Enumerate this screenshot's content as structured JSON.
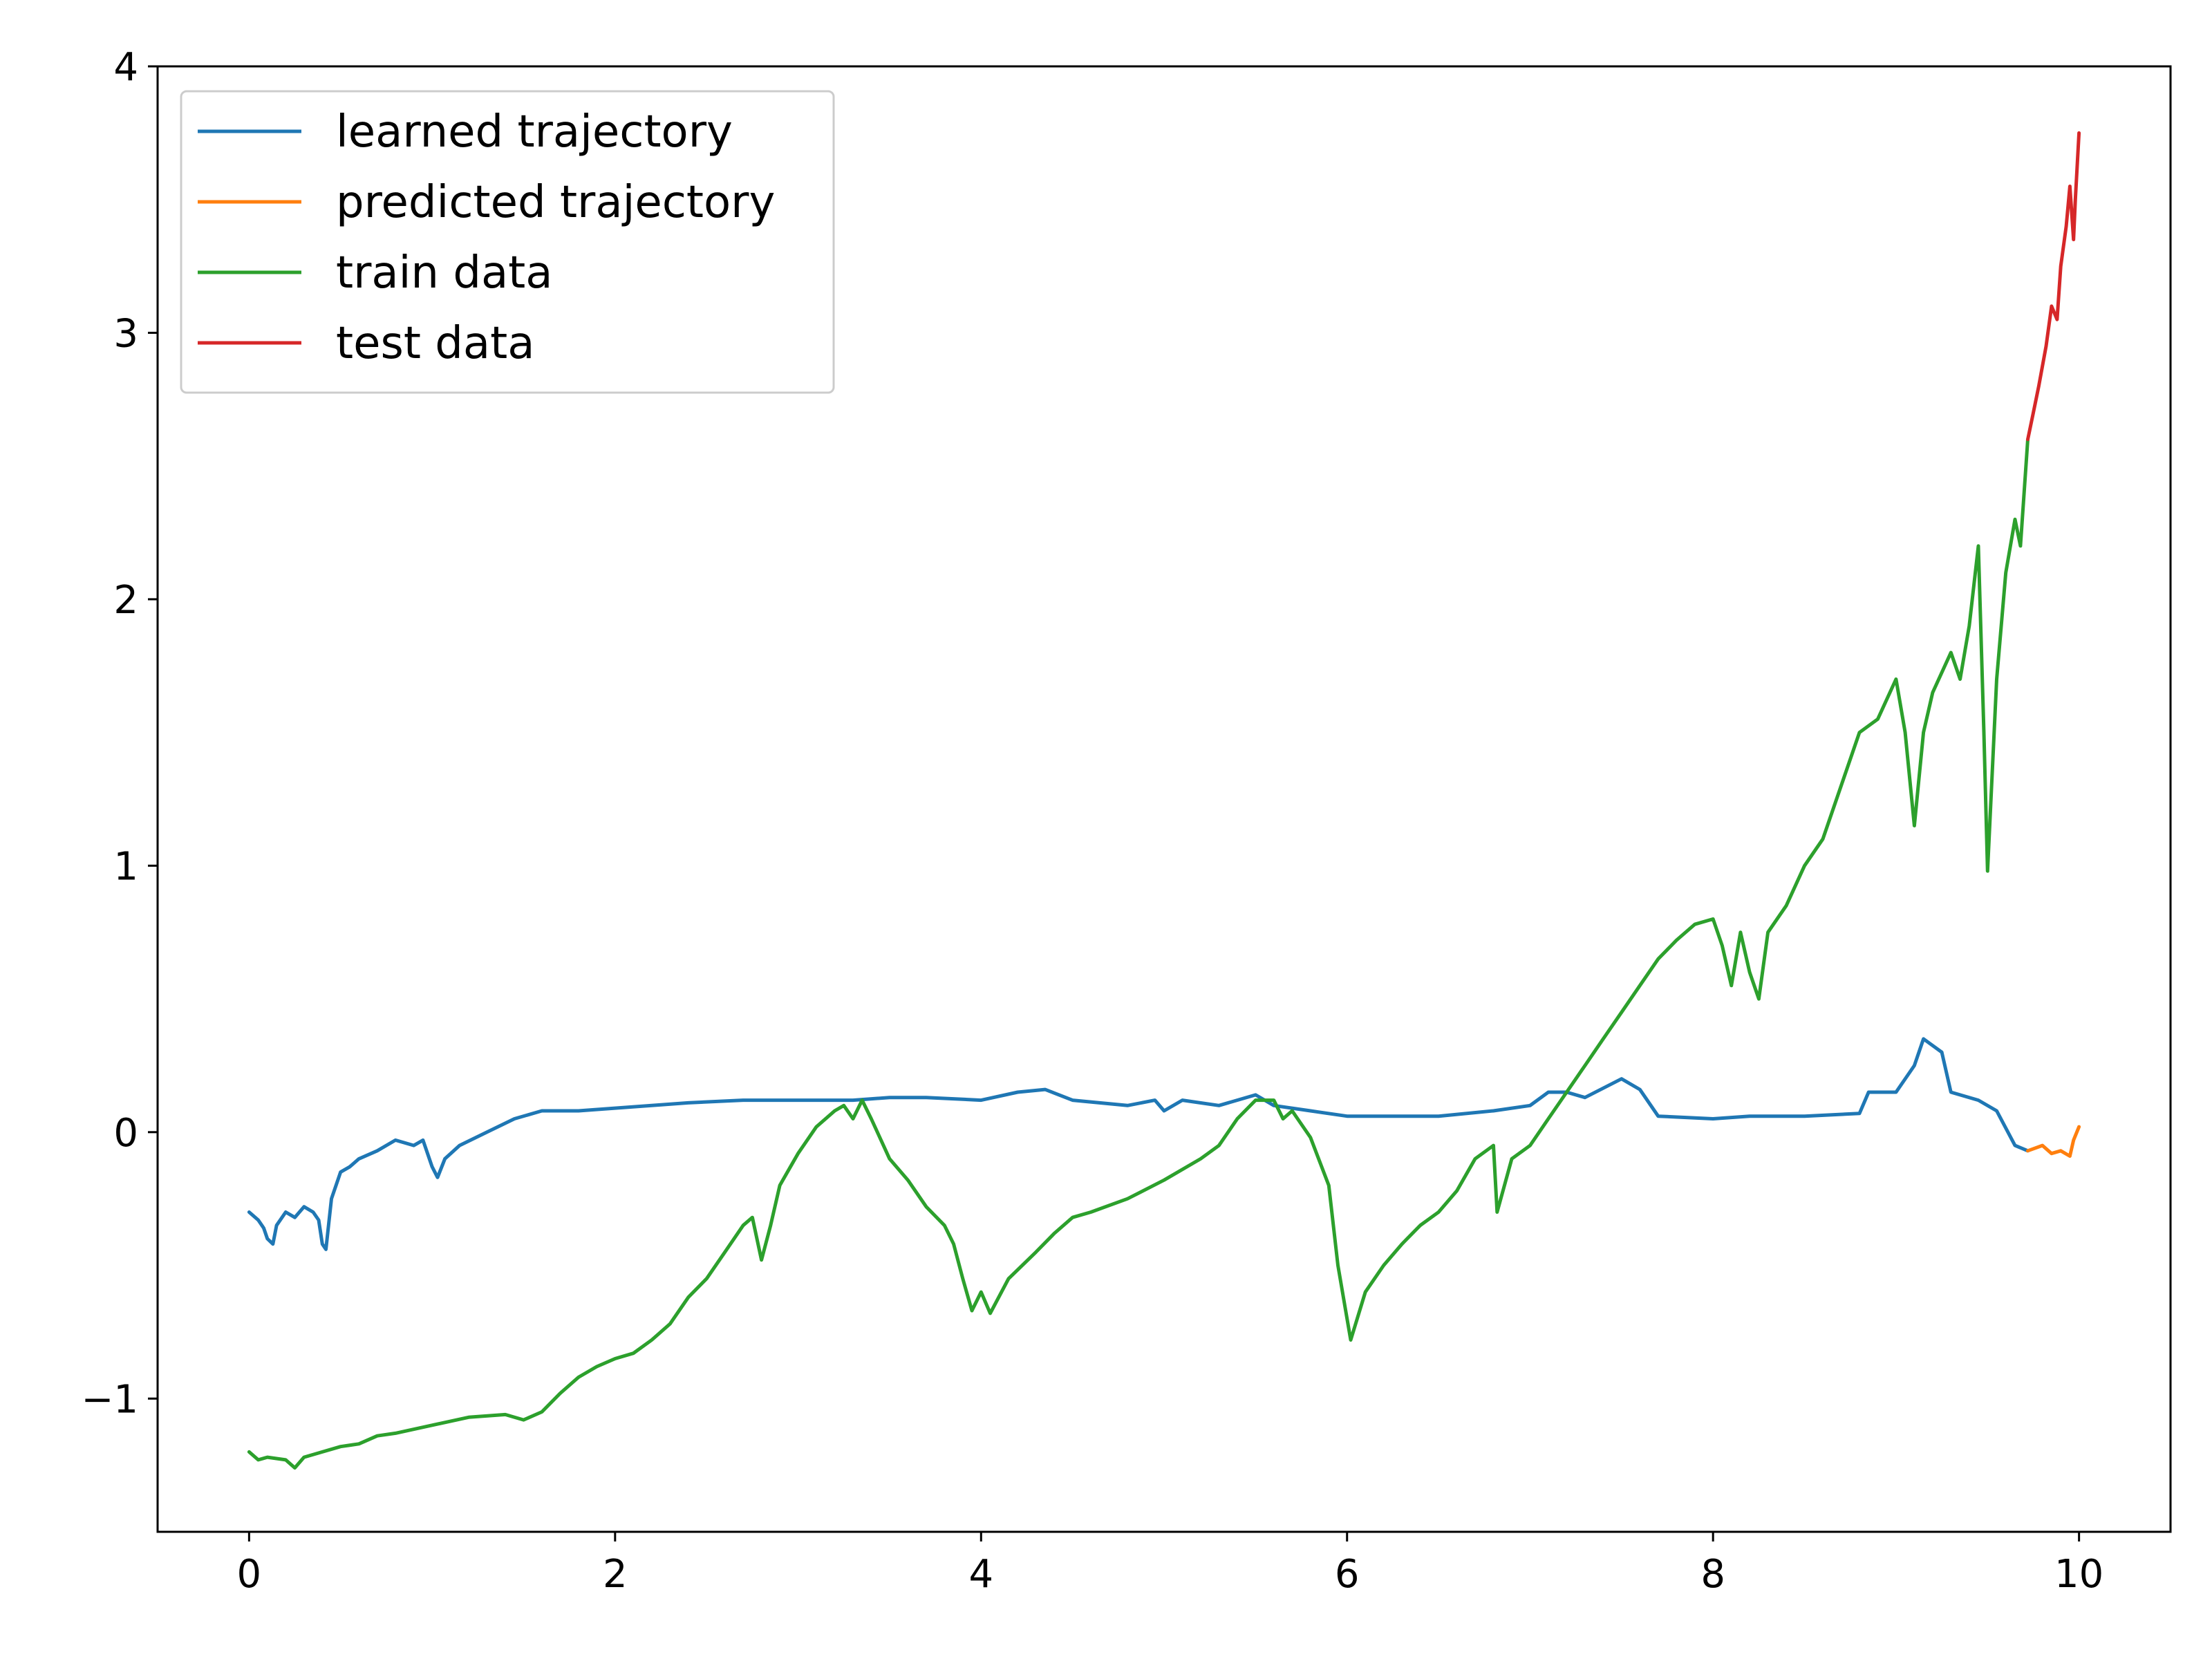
{
  "chart_data": {
    "type": "line",
    "title": "",
    "xlabel": "",
    "ylabel": "",
    "xlim": [
      -0.5,
      10.5
    ],
    "ylim": [
      -1.5,
      4.0
    ],
    "x_ticks": [
      0,
      2,
      4,
      6,
      8,
      10
    ],
    "x_tick_labels": [
      "0",
      "2",
      "4",
      "6",
      "8",
      "10"
    ],
    "y_ticks": [
      -1,
      0,
      1,
      2,
      3,
      4
    ],
    "y_tick_labels": [
      "−1",
      "0",
      "1",
      "2",
      "3",
      "4"
    ],
    "grid": false,
    "legend": {
      "position": "top-left",
      "entries": [
        "learned trajectory",
        "predicted trajectory",
        "train data",
        "test data"
      ]
    },
    "series": [
      {
        "name": "learned trajectory",
        "color": "#1f77b4",
        "points": [
          [
            0.0,
            -0.3
          ],
          [
            0.05,
            -0.33
          ],
          [
            0.08,
            -0.36
          ],
          [
            0.1,
            -0.4
          ],
          [
            0.13,
            -0.42
          ],
          [
            0.15,
            -0.35
          ],
          [
            0.2,
            -0.3
          ],
          [
            0.25,
            -0.32
          ],
          [
            0.3,
            -0.28
          ],
          [
            0.35,
            -0.3
          ],
          [
            0.38,
            -0.33
          ],
          [
            0.4,
            -0.42
          ],
          [
            0.42,
            -0.44
          ],
          [
            0.45,
            -0.25
          ],
          [
            0.5,
            -0.15
          ],
          [
            0.55,
            -0.13
          ],
          [
            0.6,
            -0.1
          ],
          [
            0.7,
            -0.07
          ],
          [
            0.8,
            -0.03
          ],
          [
            0.9,
            -0.05
          ],
          [
            0.95,
            -0.03
          ],
          [
            1.0,
            -0.13
          ],
          [
            1.03,
            -0.17
          ],
          [
            1.07,
            -0.1
          ],
          [
            1.15,
            -0.05
          ],
          [
            1.3,
            0.0
          ],
          [
            1.45,
            0.05
          ],
          [
            1.6,
            0.08
          ],
          [
            1.8,
            0.08
          ],
          [
            2.0,
            0.09
          ],
          [
            2.2,
            0.1
          ],
          [
            2.4,
            0.11
          ],
          [
            2.7,
            0.12
          ],
          [
            3.0,
            0.12
          ],
          [
            3.3,
            0.12
          ],
          [
            3.5,
            0.13
          ],
          [
            3.7,
            0.13
          ],
          [
            4.0,
            0.12
          ],
          [
            4.2,
            0.15
          ],
          [
            4.35,
            0.16
          ],
          [
            4.5,
            0.12
          ],
          [
            4.8,
            0.1
          ],
          [
            4.95,
            0.12
          ],
          [
            5.0,
            0.08
          ],
          [
            5.1,
            0.12
          ],
          [
            5.3,
            0.1
          ],
          [
            5.5,
            0.14
          ],
          [
            5.6,
            0.1
          ],
          [
            5.8,
            0.08
          ],
          [
            6.0,
            0.06
          ],
          [
            6.5,
            0.06
          ],
          [
            6.8,
            0.08
          ],
          [
            7.0,
            0.1
          ],
          [
            7.1,
            0.15
          ],
          [
            7.2,
            0.15
          ],
          [
            7.3,
            0.13
          ],
          [
            7.5,
            0.2
          ],
          [
            7.6,
            0.16
          ],
          [
            7.7,
            0.06
          ],
          [
            8.0,
            0.05
          ],
          [
            8.2,
            0.06
          ],
          [
            8.5,
            0.06
          ],
          [
            8.8,
            0.07
          ],
          [
            8.85,
            0.15
          ],
          [
            9.0,
            0.15
          ],
          [
            9.1,
            0.25
          ],
          [
            9.15,
            0.35
          ],
          [
            9.25,
            0.3
          ],
          [
            9.3,
            0.15
          ],
          [
            9.45,
            0.12
          ],
          [
            9.55,
            0.08
          ],
          [
            9.65,
            -0.05
          ],
          [
            9.72,
            -0.07
          ]
        ]
      },
      {
        "name": "predicted trajectory",
        "color": "#ff7f0e",
        "points": [
          [
            9.72,
            -0.07
          ],
          [
            9.8,
            -0.05
          ],
          [
            9.85,
            -0.08
          ],
          [
            9.9,
            -0.07
          ],
          [
            9.95,
            -0.09
          ],
          [
            9.97,
            -0.03
          ],
          [
            10.0,
            0.02
          ]
        ]
      },
      {
        "name": "train data",
        "color": "#2ca02c",
        "points": [
          [
            0.0,
            -1.2
          ],
          [
            0.05,
            -1.23
          ],
          [
            0.1,
            -1.22
          ],
          [
            0.2,
            -1.23
          ],
          [
            0.25,
            -1.26
          ],
          [
            0.3,
            -1.22
          ],
          [
            0.4,
            -1.2
          ],
          [
            0.5,
            -1.18
          ],
          [
            0.6,
            -1.17
          ],
          [
            0.7,
            -1.14
          ],
          [
            0.8,
            -1.13
          ],
          [
            1.0,
            -1.1
          ],
          [
            1.2,
            -1.07
          ],
          [
            1.4,
            -1.06
          ],
          [
            1.5,
            -1.08
          ],
          [
            1.6,
            -1.05
          ],
          [
            1.7,
            -0.98
          ],
          [
            1.8,
            -0.92
          ],
          [
            1.9,
            -0.88
          ],
          [
            2.0,
            -0.85
          ],
          [
            2.1,
            -0.83
          ],
          [
            2.2,
            -0.78
          ],
          [
            2.3,
            -0.72
          ],
          [
            2.4,
            -0.62
          ],
          [
            2.5,
            -0.55
          ],
          [
            2.6,
            -0.45
          ],
          [
            2.7,
            -0.35
          ],
          [
            2.75,
            -0.32
          ],
          [
            2.8,
            -0.48
          ],
          [
            2.85,
            -0.35
          ],
          [
            2.9,
            -0.2
          ],
          [
            3.0,
            -0.08
          ],
          [
            3.1,
            0.02
          ],
          [
            3.2,
            0.08
          ],
          [
            3.25,
            0.1
          ],
          [
            3.3,
            0.05
          ],
          [
            3.35,
            0.12
          ],
          [
            3.4,
            0.05
          ],
          [
            3.5,
            -0.1
          ],
          [
            3.6,
            -0.18
          ],
          [
            3.7,
            -0.28
          ],
          [
            3.8,
            -0.35
          ],
          [
            3.85,
            -0.42
          ],
          [
            3.9,
            -0.55
          ],
          [
            3.95,
            -0.67
          ],
          [
            4.0,
            -0.6
          ],
          [
            4.05,
            -0.68
          ],
          [
            4.15,
            -0.55
          ],
          [
            4.3,
            -0.45
          ],
          [
            4.4,
            -0.38
          ],
          [
            4.5,
            -0.32
          ],
          [
            4.6,
            -0.3
          ],
          [
            4.8,
            -0.25
          ],
          [
            5.0,
            -0.18
          ],
          [
            5.2,
            -0.1
          ],
          [
            5.3,
            -0.05
          ],
          [
            5.4,
            0.05
          ],
          [
            5.5,
            0.12
          ],
          [
            5.6,
            0.12
          ],
          [
            5.65,
            0.05
          ],
          [
            5.7,
            0.08
          ],
          [
            5.8,
            -0.02
          ],
          [
            5.9,
            -0.2
          ],
          [
            5.95,
            -0.5
          ],
          [
            6.0,
            -0.7
          ],
          [
            6.02,
            -0.78
          ],
          [
            6.1,
            -0.6
          ],
          [
            6.2,
            -0.5
          ],
          [
            6.3,
            -0.42
          ],
          [
            6.4,
            -0.35
          ],
          [
            6.5,
            -0.3
          ],
          [
            6.6,
            -0.22
          ],
          [
            6.7,
            -0.1
          ],
          [
            6.8,
            -0.05
          ],
          [
            6.82,
            -0.3
          ],
          [
            6.9,
            -0.1
          ],
          [
            7.0,
            -0.05
          ],
          [
            7.1,
            0.05
          ],
          [
            7.2,
            0.15
          ],
          [
            7.3,
            0.25
          ],
          [
            7.4,
            0.35
          ],
          [
            7.5,
            0.45
          ],
          [
            7.6,
            0.55
          ],
          [
            7.7,
            0.65
          ],
          [
            7.8,
            0.72
          ],
          [
            7.9,
            0.78
          ],
          [
            8.0,
            0.8
          ],
          [
            8.05,
            0.7
          ],
          [
            8.1,
            0.55
          ],
          [
            8.15,
            0.75
          ],
          [
            8.2,
            0.6
          ],
          [
            8.25,
            0.5
          ],
          [
            8.3,
            0.75
          ],
          [
            8.4,
            0.85
          ],
          [
            8.5,
            1.0
          ],
          [
            8.6,
            1.1
          ],
          [
            8.7,
            1.3
          ],
          [
            8.8,
            1.5
          ],
          [
            8.9,
            1.55
          ],
          [
            9.0,
            1.7
          ],
          [
            9.05,
            1.5
          ],
          [
            9.1,
            1.15
          ],
          [
            9.15,
            1.5
          ],
          [
            9.2,
            1.65
          ],
          [
            9.3,
            1.8
          ],
          [
            9.35,
            1.7
          ],
          [
            9.4,
            1.9
          ],
          [
            9.45,
            2.2
          ],
          [
            9.48,
            1.5
          ],
          [
            9.5,
            0.98
          ],
          [
            9.55,
            1.7
          ],
          [
            9.6,
            2.1
          ],
          [
            9.65,
            2.3
          ],
          [
            9.68,
            2.2
          ],
          [
            9.72,
            2.6
          ]
        ]
      },
      {
        "name": "test data",
        "color": "#d62728",
        "points": [
          [
            9.72,
            2.6
          ],
          [
            9.75,
            2.7
          ],
          [
            9.78,
            2.8
          ],
          [
            9.82,
            2.95
          ],
          [
            9.85,
            3.1
          ],
          [
            9.88,
            3.05
          ],
          [
            9.9,
            3.25
          ],
          [
            9.93,
            3.4
          ],
          [
            9.95,
            3.55
          ],
          [
            9.97,
            3.35
          ],
          [
            9.98,
            3.5
          ],
          [
            10.0,
            3.75
          ]
        ]
      }
    ]
  }
}
